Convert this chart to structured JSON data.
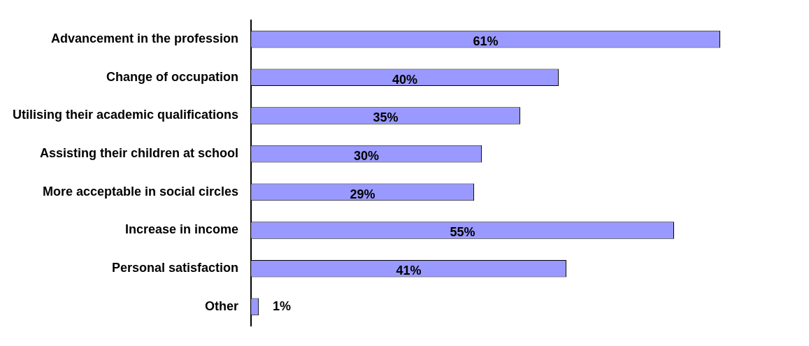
{
  "chart_data": {
    "type": "bar",
    "orientation": "horizontal",
    "categories": [
      "Advancement in the profession",
      "Change of occupation",
      "Utilising their academic qualifications",
      "Assisting their children at school",
      "More acceptable in social circles",
      "Increase in income",
      "Personal satisfaction",
      "Other"
    ],
    "values": [
      61,
      40,
      35,
      30,
      29,
      55,
      41,
      1
    ],
    "value_labels": [
      "61%",
      "40%",
      "35%",
      "30%",
      "29%",
      "55%",
      "41%",
      "1%"
    ],
    "color": "#9999ff",
    "grid": false,
    "legend": false
  }
}
